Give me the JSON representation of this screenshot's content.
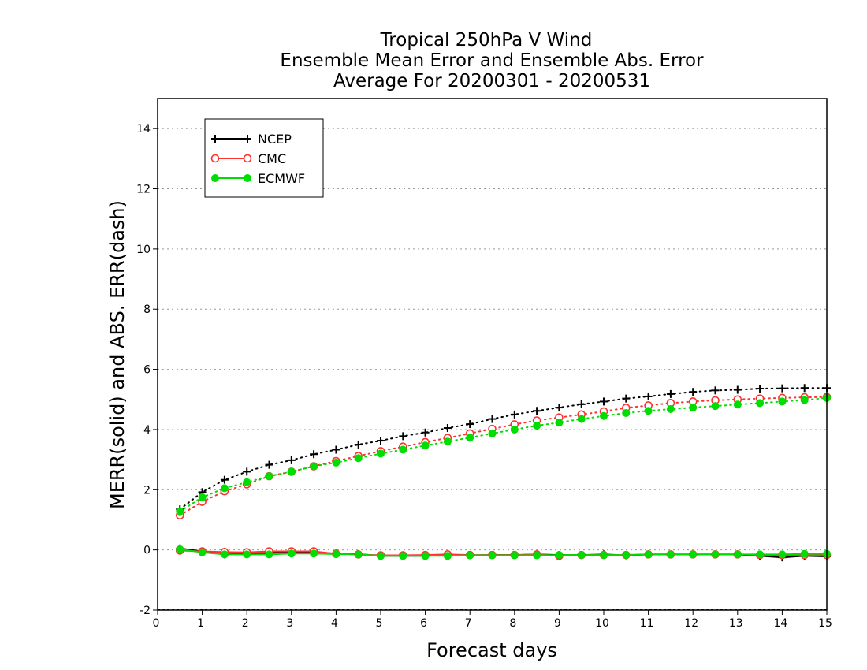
{
  "chart_data": {
    "type": "line",
    "title_lines": [
      "Tropical 250hPa V Wind",
      "Ensemble Mean Error and Ensemble Abs. Error",
      "Average For 20200301 - 20200531"
    ],
    "xlabel": "Forecast days",
    "ylabel": "MERR(solid) and ABS. ERR(dash)",
    "xlim": [
      0,
      15
    ],
    "ylim": [
      -2,
      15
    ],
    "xticks": [
      "0",
      "1",
      "2",
      "3",
      "4",
      "5",
      "6",
      "7",
      "8",
      "9",
      "10",
      "11",
      "12",
      "13",
      "14",
      "15"
    ],
    "yticks": [
      "-2",
      "0",
      "2",
      "4",
      "6",
      "8",
      "10",
      "12",
      "14"
    ],
    "grid": "horizontal dotted",
    "legend_placement": "top-left",
    "x": [
      0.5,
      1,
      1.5,
      2,
      2.5,
      3,
      3.5,
      4,
      4.5,
      5,
      5.5,
      6,
      6.5,
      7,
      7.5,
      8,
      8.5,
      9,
      9.5,
      10,
      10.5,
      11,
      11.5,
      12,
      12.5,
      13,
      13.5,
      14,
      14.5,
      15
    ],
    "series": [
      {
        "name": "NCEP",
        "color": "#000000",
        "marker": "plus",
        "abs_err": [
          1.35,
          1.92,
          2.33,
          2.6,
          2.83,
          2.98,
          3.18,
          3.33,
          3.5,
          3.63,
          3.78,
          3.9,
          4.05,
          4.18,
          4.35,
          4.5,
          4.62,
          4.73,
          4.84,
          4.93,
          5.03,
          5.1,
          5.18,
          5.25,
          5.3,
          5.32,
          5.36,
          5.37,
          5.38,
          5.38
        ],
        "mean_err": [
          0.05,
          -0.05,
          -0.15,
          -0.12,
          -0.1,
          -0.08,
          -0.08,
          -0.12,
          -0.14,
          -0.2,
          -0.2,
          -0.2,
          -0.18,
          -0.18,
          -0.17,
          -0.17,
          -0.15,
          -0.17,
          -0.17,
          -0.15,
          -0.18,
          -0.15,
          -0.15,
          -0.15,
          -0.15,
          -0.15,
          -0.2,
          -0.25,
          -0.2,
          -0.22
        ]
      },
      {
        "name": "CMC",
        "color": "#ff3030",
        "marker": "open-circle",
        "abs_err": [
          1.15,
          1.6,
          1.95,
          2.18,
          2.45,
          2.6,
          2.78,
          2.95,
          3.12,
          3.28,
          3.43,
          3.58,
          3.72,
          3.87,
          4.02,
          4.17,
          4.3,
          4.4,
          4.5,
          4.6,
          4.72,
          4.8,
          4.88,
          4.93,
          4.97,
          5.0,
          5.03,
          5.05,
          5.07,
          5.08
        ],
        "mean_err": [
          -0.02,
          -0.05,
          -0.07,
          -0.08,
          -0.05,
          -0.05,
          -0.05,
          -0.13,
          -0.15,
          -0.18,
          -0.18,
          -0.17,
          -0.15,
          -0.17,
          -0.17,
          -0.17,
          -0.15,
          -0.2,
          -0.17,
          -0.17,
          -0.17,
          -0.15,
          -0.15,
          -0.15,
          -0.15,
          -0.15,
          -0.17,
          -0.17,
          -0.17,
          -0.17
        ]
      },
      {
        "name": "ECMWF",
        "color": "#00dd00",
        "marker": "filled-circle",
        "abs_err": [
          1.28,
          1.75,
          2.05,
          2.25,
          2.45,
          2.6,
          2.78,
          2.9,
          3.05,
          3.2,
          3.33,
          3.47,
          3.6,
          3.73,
          3.87,
          4.0,
          4.13,
          4.23,
          4.35,
          4.45,
          4.55,
          4.62,
          4.68,
          4.73,
          4.78,
          4.83,
          4.88,
          4.93,
          4.98,
          5.05
        ],
        "mean_err": [
          0.02,
          -0.08,
          -0.15,
          -0.15,
          -0.15,
          -0.12,
          -0.12,
          -0.14,
          -0.15,
          -0.2,
          -0.2,
          -0.2,
          -0.2,
          -0.18,
          -0.18,
          -0.18,
          -0.18,
          -0.17,
          -0.17,
          -0.17,
          -0.17,
          -0.15,
          -0.15,
          -0.15,
          -0.15,
          -0.15,
          -0.15,
          -0.15,
          -0.13,
          -0.13
        ]
      }
    ]
  }
}
